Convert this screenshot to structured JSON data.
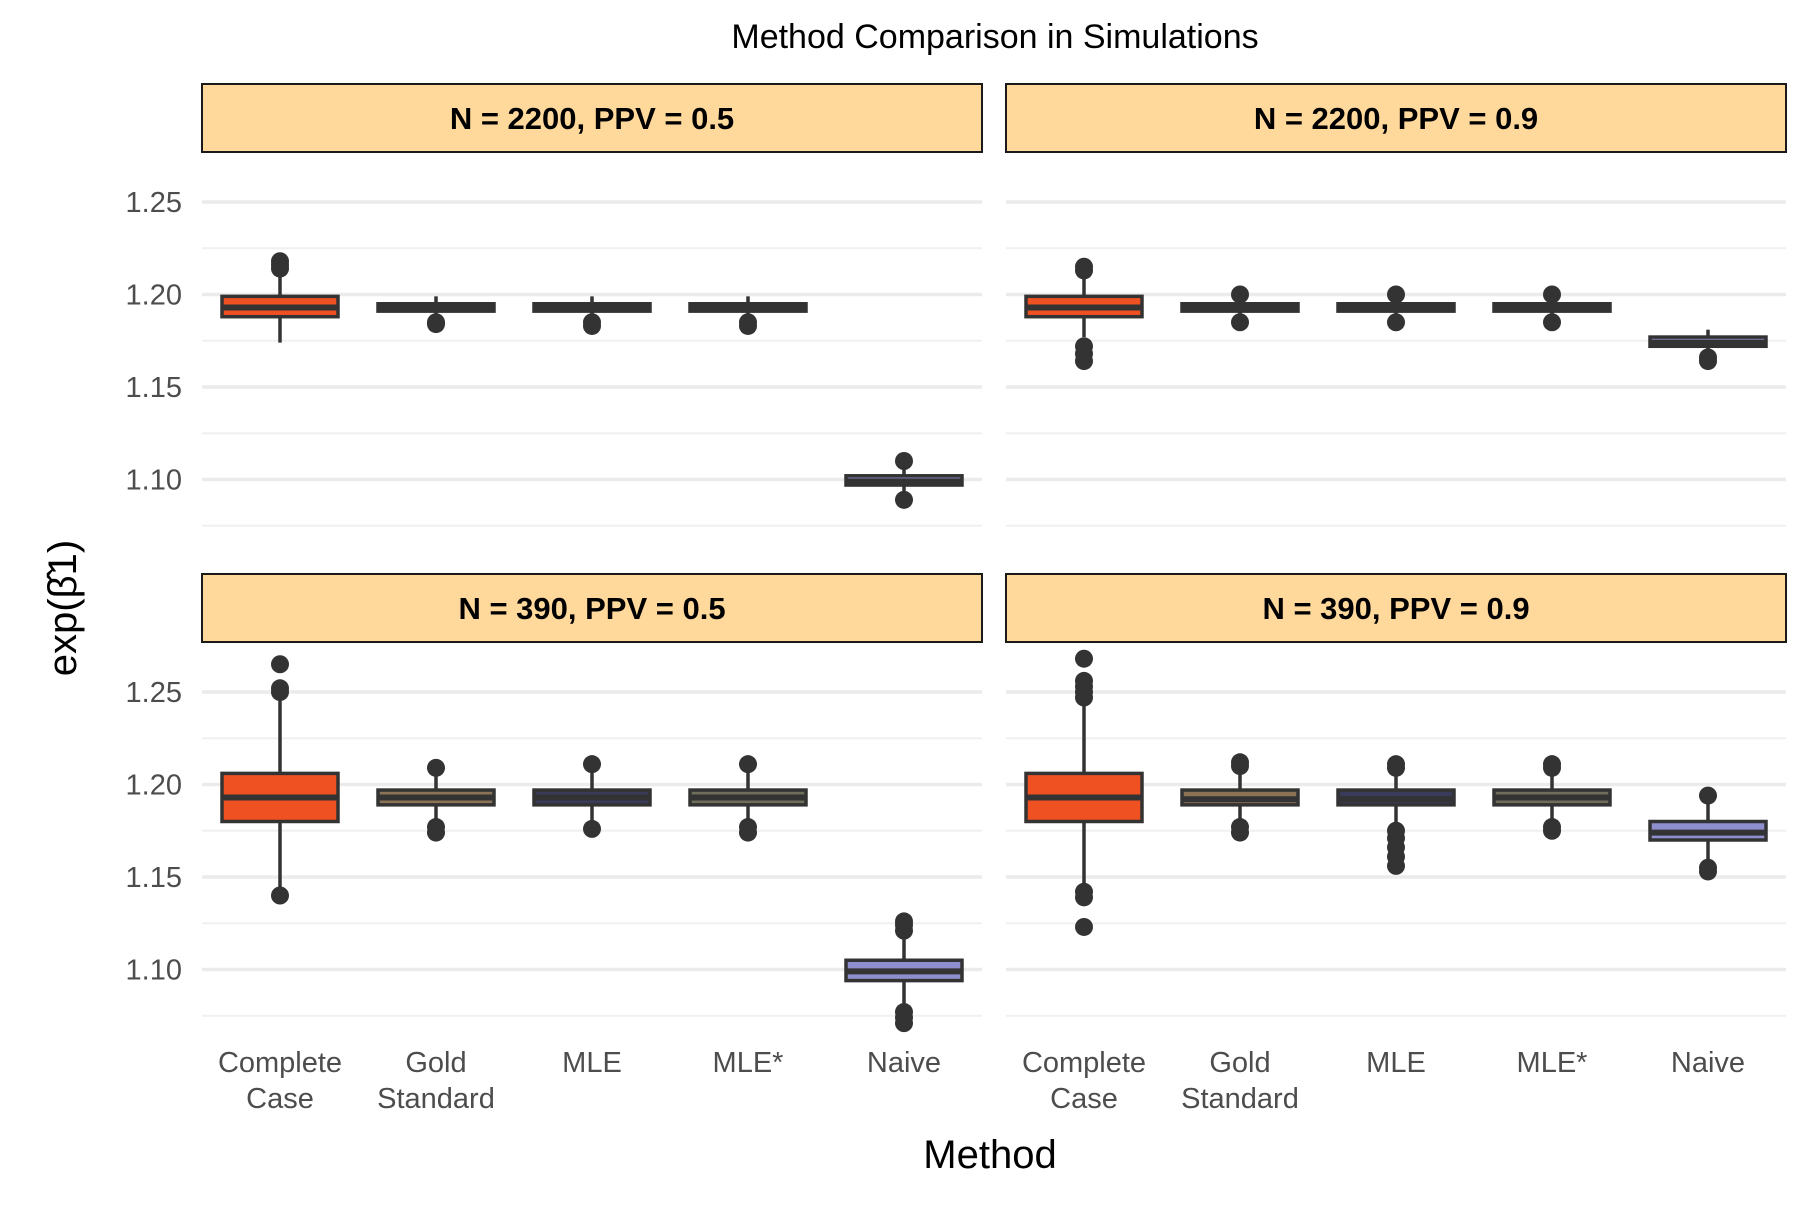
{
  "chart_data": {
    "type": "boxplot",
    "title": "Method Comparison in Simulations",
    "xlabel": "Method",
    "ylabel": "exp(β̂1)",
    "categories": [
      "Complete\nCase",
      "Gold\nStandard",
      "MLE",
      "MLE*",
      "Naive"
    ],
    "ylim": [
      1.07,
      1.27
    ],
    "y_ticks": [
      1.1,
      1.15,
      1.2,
      1.25
    ],
    "y_tick_labels": [
      "1.10",
      "1.15",
      "1.20",
      "1.25"
    ],
    "grid": true,
    "legend": "none",
    "colors": {
      "Complete\nCase": "#F05123",
      "Gold\nStandard": "#8B7355",
      "MLE": "#3A3A5A",
      "MLE*": "#6E6E5A",
      "Naive": "#8F8FCF",
      "strip_fill": "#FFD89B",
      "box_line": "#333333",
      "grid": "#ebebeb"
    },
    "panels": [
      {
        "label": "N = 2200, PPV = 0.5",
        "boxes": [
          {
            "method": "Complete\nCase",
            "q1": 1.188,
            "median": 1.193,
            "q3": 1.199,
            "lower": 1.174,
            "upper": 1.21,
            "outliers": [
              1.214,
              1.216,
              1.218
            ]
          },
          {
            "method": "Gold\nStandard",
            "q1": 1.191,
            "median": 1.193,
            "q3": 1.195,
            "lower": 1.187,
            "upper": 1.199,
            "outliers": [
              1.184,
              1.185
            ]
          },
          {
            "method": "MLE",
            "q1": 1.191,
            "median": 1.193,
            "q3": 1.195,
            "lower": 1.187,
            "upper": 1.199,
            "outliers": [
              1.183,
              1.185
            ]
          },
          {
            "method": "MLE*",
            "q1": 1.191,
            "median": 1.193,
            "q3": 1.195,
            "lower": 1.187,
            "upper": 1.199,
            "outliers": [
              1.183,
              1.185
            ]
          },
          {
            "method": "Naive",
            "q1": 1.097,
            "median": 1.099,
            "q3": 1.102,
            "lower": 1.092,
            "upper": 1.106,
            "outliers": [
              1.089,
              1.11
            ]
          }
        ]
      },
      {
        "label": "N = 2200, PPV = 0.9",
        "boxes": [
          {
            "method": "Complete\nCase",
            "q1": 1.188,
            "median": 1.193,
            "q3": 1.199,
            "lower": 1.177,
            "upper": 1.21,
            "outliers": [
              1.164,
              1.168,
              1.172,
              1.213,
              1.215
            ]
          },
          {
            "method": "Gold\nStandard",
            "q1": 1.191,
            "median": 1.193,
            "q3": 1.195,
            "lower": 1.187,
            "upper": 1.199,
            "outliers": [
              1.185,
              1.2
            ]
          },
          {
            "method": "MLE",
            "q1": 1.191,
            "median": 1.193,
            "q3": 1.195,
            "lower": 1.187,
            "upper": 1.199,
            "outliers": [
              1.185,
              1.2
            ]
          },
          {
            "method": "MLE*",
            "q1": 1.191,
            "median": 1.193,
            "q3": 1.195,
            "lower": 1.187,
            "upper": 1.199,
            "outliers": [
              1.185,
              1.2
            ]
          },
          {
            "method": "Naive",
            "q1": 1.172,
            "median": 1.174,
            "q3": 1.177,
            "lower": 1.168,
            "upper": 1.181,
            "outliers": [
              1.164,
              1.166
            ]
          }
        ]
      },
      {
        "label": "N = 390, PPV = 0.5",
        "boxes": [
          {
            "method": "Complete\nCase",
            "q1": 1.18,
            "median": 1.193,
            "q3": 1.206,
            "lower": 1.144,
            "upper": 1.246,
            "outliers": [
              1.14,
              1.25,
              1.252,
              1.265
            ]
          },
          {
            "method": "Gold\nStandard",
            "q1": 1.189,
            "median": 1.193,
            "q3": 1.197,
            "lower": 1.178,
            "upper": 1.207,
            "outliers": [
              1.174,
              1.177,
              1.209
            ]
          },
          {
            "method": "MLE",
            "q1": 1.189,
            "median": 1.193,
            "q3": 1.197,
            "lower": 1.178,
            "upper": 1.207,
            "outliers": [
              1.176,
              1.211
            ]
          },
          {
            "method": "MLE*",
            "q1": 1.189,
            "median": 1.193,
            "q3": 1.197,
            "lower": 1.178,
            "upper": 1.207,
            "outliers": [
              1.174,
              1.177,
              1.211
            ]
          },
          {
            "method": "Naive",
            "q1": 1.094,
            "median": 1.099,
            "q3": 1.105,
            "lower": 1.08,
            "upper": 1.118,
            "outliers": [
              1.071,
              1.074,
              1.077,
              1.121,
              1.124,
              1.126
            ]
          }
        ]
      },
      {
        "label": "N = 390, PPV = 0.9",
        "boxes": [
          {
            "method": "Complete\nCase",
            "q1": 1.18,
            "median": 1.193,
            "q3": 1.206,
            "lower": 1.145,
            "upper": 1.244,
            "outliers": [
              1.123,
              1.139,
              1.142,
              1.247,
              1.25,
              1.253,
              1.256,
              1.268
            ]
          },
          {
            "method": "Gold\nStandard",
            "q1": 1.189,
            "median": 1.192,
            "q3": 1.197,
            "lower": 1.178,
            "upper": 1.207,
            "outliers": [
              1.174,
              1.177,
              1.21,
              1.212
            ]
          },
          {
            "method": "MLE",
            "q1": 1.189,
            "median": 1.192,
            "q3": 1.197,
            "lower": 1.178,
            "upper": 1.207,
            "outliers": [
              1.156,
              1.161,
              1.166,
              1.171,
              1.175,
              1.209,
              1.211
            ]
          },
          {
            "method": "MLE*",
            "q1": 1.189,
            "median": 1.193,
            "q3": 1.197,
            "lower": 1.178,
            "upper": 1.207,
            "outliers": [
              1.175,
              1.177,
              1.209,
              1.211
            ]
          },
          {
            "method": "Naive",
            "q1": 1.17,
            "median": 1.174,
            "q3": 1.18,
            "lower": 1.158,
            "upper": 1.19,
            "outliers": [
              1.153,
              1.155,
              1.194
            ]
          }
        ]
      }
    ]
  }
}
